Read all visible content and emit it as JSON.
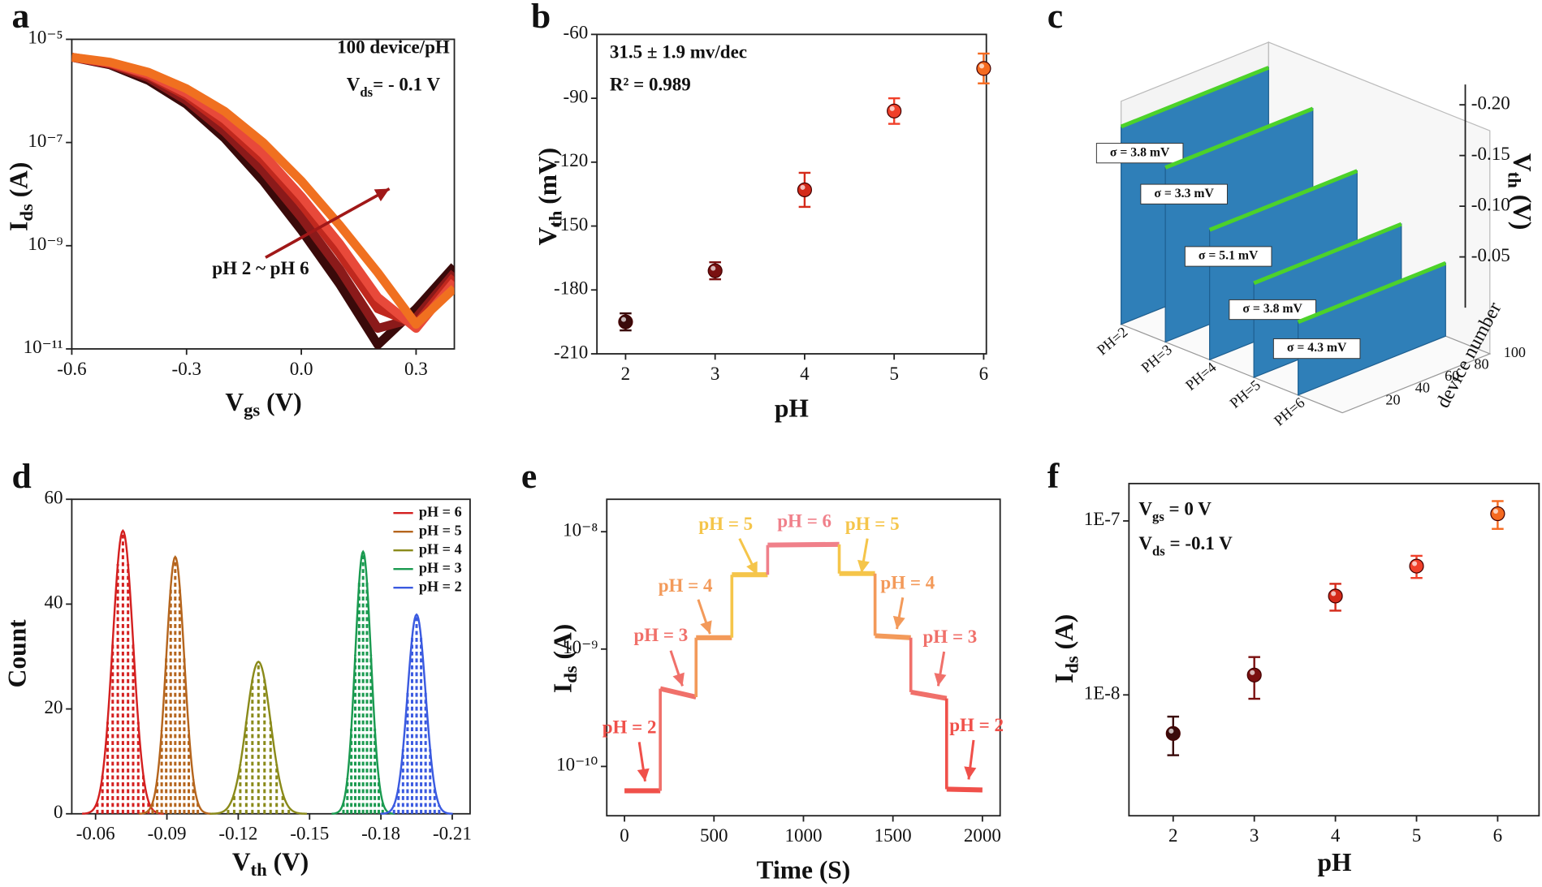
{
  "chart_data": [
    {
      "type": "line",
      "panel_label": "a",
      "log_y": true,
      "xlabel": {
        "text": "V",
        "sub": "gs",
        "unit": " (V)"
      },
      "ylabel": {
        "text": "I",
        "sub": "ds",
        "unit": " (A)"
      },
      "xlim": [
        -0.6,
        0.4
      ],
      "xticks": [
        -0.6,
        -0.3,
        {
          "value": 0,
          "label": "0.0"
        },
        0.3
      ],
      "ylim": [
        1e-11,
        1e-05
      ],
      "yticks": [
        {
          "value": 1e-11,
          "label": "10⁻¹¹"
        },
        {
          "value": 1e-09,
          "label": "10⁻⁹"
        },
        {
          "value": 1e-07,
          "label": "10⁻⁷"
        },
        {
          "value": 1e-05,
          "label": "10⁻⁵"
        }
      ],
      "annotations": [
        {
          "text": "100 device/pH"
        },
        {
          "text": "V",
          "sub": "ds",
          "unit": "= - 0.1 V"
        },
        {
          "text": "pH 2 ~ pH 6"
        }
      ],
      "x": [
        -0.6,
        -0.5,
        -0.4,
        -0.3,
        -0.2,
        -0.1,
        0,
        0.1,
        0.2,
        0.3,
        0.4
      ],
      "series": [
        {
          "color": "#3a0a0a",
          "values": [
            4.5e-06,
            3.2e-06,
            1.6e-06,
            5.5e-07,
            1.2e-07,
            1.8e-08,
            2e-09,
            1.8e-10,
            1.2e-11,
            6e-11,
            4e-10
          ]
        },
        {
          "color": "#8b1a1a",
          "values": [
            4.5e-06,
            3.3e-06,
            1.8e-06,
            6.5e-07,
            1.6e-07,
            2.8e-08,
            3.5e-09,
            3.5e-10,
            2.5e-11,
            4e-11,
            3e-10
          ]
        },
        {
          "color": "#c0281e",
          "values": [
            4.5e-06,
            3.4e-06,
            2e-06,
            8e-07,
            2.2e-07,
            4.5e-08,
            6.5e-09,
            7e-10,
            6e-11,
            3e-11,
            2.5e-10
          ]
        },
        {
          "color": "#e8493a",
          "values": [
            4.5e-06,
            3.5e-06,
            2.1e-06,
            9e-07,
            2.8e-07,
            6e-08,
            9e-09,
            1.1e-09,
            1e-10,
            2.5e-11,
            2e-10
          ]
        },
        {
          "color": "#f07020",
          "values": [
            4.5e-06,
            3.6e-06,
            2.3e-06,
            1.1e-06,
            4e-07,
            1e-07,
            1.8e-08,
            2.5e-09,
            3e-10,
            3e-11,
            1.5e-10
          ]
        }
      ]
    },
    {
      "type": "scatter",
      "panel_label": "b",
      "xlabel": "pH",
      "ylabel": {
        "text": "V",
        "sub": "th",
        "unit": " (mV)"
      },
      "xlim": [
        1.68,
        6.03
      ],
      "xticks": [
        2,
        3,
        4,
        5,
        6
      ],
      "ylim": [
        -210,
        -60
      ],
      "yticks": [
        -210,
        -180,
        -150,
        -120,
        -90,
        -60
      ],
      "annotations": [
        {
          "text": "31.5  ± 1.9 mv/dec"
        },
        {
          "text": "R² = 0.989"
        }
      ],
      "x": [
        2,
        3,
        4,
        5,
        6
      ],
      "values": [
        -195,
        -171,
        -133,
        -96,
        -76
      ],
      "errors": [
        4,
        4,
        8,
        6,
        7
      ],
      "colors": [
        "#3a0a0a",
        "#7a1010",
        "#d42a1a",
        "#f0402a",
        "#f56a20"
      ]
    },
    {
      "type": "waterfall3d",
      "panel_label": "c",
      "categories": [
        "PH=2",
        "PH=3",
        "PH=4",
        "PH=5",
        "PH=6"
      ],
      "values": [
        -0.195,
        -0.172,
        -0.128,
        -0.093,
        -0.072
      ],
      "sigma_labels": [
        "σ = 3.8 mV",
        "σ = 3.3 mV",
        "σ = 5.1 mV",
        "σ = 3.8 mV",
        "σ = 4.3 mV"
      ],
      "zlabel": {
        "text": "V",
        "sub": "th",
        "unit": " (V)"
      },
      "zlim": [
        0,
        -0.22
      ],
      "zticks": [
        {
          "value": -0.05,
          "label": "-0.05"
        },
        {
          "value": -0.1,
          "label": "-0.10"
        },
        {
          "value": -0.15,
          "label": "-0.15"
        },
        {
          "value": -0.2,
          "label": "-0.20"
        }
      ],
      "device_label": "device number",
      "device_ticks": [
        20,
        40,
        60,
        80,
        100
      ],
      "color": "#2f7fb8",
      "top_color": "#4cd22a"
    },
    {
      "type": "gaussian",
      "panel_label": "d",
      "xlabel": {
        "text": "V",
        "sub": "th",
        "unit": " (V)"
      },
      "ylabel": "Count",
      "xlim": [
        -0.05,
        -0.2175
      ],
      "xticks": [
        -0.06,
        -0.09,
        -0.12,
        -0.15,
        -0.18,
        -0.21
      ],
      "ylim": [
        0,
        60
      ],
      "yticks": [
        0,
        20,
        40,
        60
      ],
      "legend": "top-right",
      "series": [
        {
          "name": "pH = 6",
          "color": "#d42020",
          "mean": -0.0715,
          "peak": 54,
          "sigma": 0.0043
        },
        {
          "name": "pH = 5",
          "color": "#b5651d",
          "mean": -0.0935,
          "peak": 49,
          "sigma": 0.0038
        },
        {
          "name": "pH = 4",
          "color": "#8a8a1a",
          "mean": -0.1285,
          "peak": 29,
          "sigma": 0.0051
        },
        {
          "name": "pH = 3",
          "color": "#1a9a50",
          "mean": -0.1725,
          "peak": 50,
          "sigma": 0.0033
        },
        {
          "name": "pH = 2",
          "color": "#3a5ae0",
          "mean": -0.195,
          "peak": 38,
          "sigma": 0.0038
        }
      ]
    },
    {
      "type": "step_line",
      "panel_label": "e",
      "log_y": true,
      "xlabel": "Time (S)",
      "ylabel": {
        "text": "I",
        "sub": "ds",
        "unit": " (A)"
      },
      "xlim": [
        -99,
        2099
      ],
      "xticks": [
        0,
        500,
        1000,
        1500,
        2000
      ],
      "ylim": [
        3.8e-11,
        1.89e-08
      ],
      "yticks": [
        {
          "value": 1e-10,
          "label": "10⁻¹⁰"
        },
        {
          "value": 1e-09,
          "label": "10⁻⁹"
        },
        {
          "value": 1e-08,
          "label": "10⁻⁸"
        }
      ],
      "series": [
        {
          "color": "#f0504a",
          "x": [
            0,
            200
          ],
          "values": [
            6.2e-11,
            6.2e-11
          ]
        },
        {
          "color": "#f0706a",
          "x": [
            200,
            400
          ],
          "values": [
            4.6e-10,
            3.9e-10
          ]
        },
        {
          "color": "#f39a5a",
          "x": [
            400,
            600
          ],
          "values": [
            1.25e-09,
            1.25e-09
          ]
        },
        {
          "color": "#f5c54a",
          "x": [
            600,
            800
          ],
          "values": [
            4.3e-09,
            4.3e-09
          ]
        },
        {
          "color": "#f0808a",
          "x": [
            800,
            1200
          ],
          "values": [
            7.7e-09,
            7.8e-09
          ]
        },
        {
          "color": "#f5c54a",
          "x": [
            1200,
            1400
          ],
          "values": [
            4.4e-09,
            4.4e-09
          ]
        },
        {
          "color": "#f39a5a",
          "x": [
            1400,
            1600
          ],
          "values": [
            1.3e-09,
            1.25e-09
          ]
        },
        {
          "color": "#f0706a",
          "x": [
            1600,
            1800
          ],
          "values": [
            4.3e-10,
            3.8e-10
          ]
        },
        {
          "color": "#f0504a",
          "x": [
            1800,
            2000
          ],
          "values": [
            6.4e-11,
            6.3e-11
          ]
        }
      ],
      "annotations": [
        {
          "text": "pH = 2",
          "color": "#f0504a"
        },
        {
          "text": "pH = 3",
          "color": "#f0706a"
        },
        {
          "text": "pH = 4",
          "color": "#f39a5a"
        },
        {
          "text": "pH = 5",
          "color": "#f5c54a"
        },
        {
          "text": "pH = 6",
          "color": "#f0808a"
        },
        {
          "text": "pH = 5",
          "color": "#f5c54a"
        },
        {
          "text": "pH = 4",
          "color": "#f39a5a"
        },
        {
          "text": "pH = 3",
          "color": "#f0706a"
        },
        {
          "text": "pH = 2",
          "color": "#f0504a"
        }
      ]
    },
    {
      "type": "scatter",
      "panel_label": "f",
      "log_y": true,
      "xlabel": "pH",
      "ylabel": {
        "text": "I",
        "sub": "ds",
        "unit": " (A)"
      },
      "xlim": [
        1.455,
        6.51
      ],
      "xticks": [
        2,
        3,
        4,
        5,
        6
      ],
      "ylim": [
        2.02e-09,
        1.64e-07
      ],
      "yticks": [
        {
          "value": 1e-08,
          "label": "1E-8"
        },
        {
          "value": 1e-07,
          "label": "1E-7"
        }
      ],
      "annotations": [
        {
          "text": "V",
          "sub": "gs",
          "unit": " = 0 V"
        },
        {
          "text": "V",
          "sub": "ds",
          "unit": " = -0.1 V"
        }
      ],
      "x": [
        2,
        3,
        4,
        5,
        6
      ],
      "values": [
        6e-09,
        1.3e-08,
        3.7e-08,
        5.5e-08,
        1.1e-07
      ],
      "errors": [
        1.5e-09,
        3.5e-09,
        6.5e-09,
        8e-09,
        2e-08
      ],
      "colors": [
        "#3a0a0a",
        "#7a1010",
        "#d42a1a",
        "#f0402a",
        "#f56a20"
      ]
    }
  ]
}
